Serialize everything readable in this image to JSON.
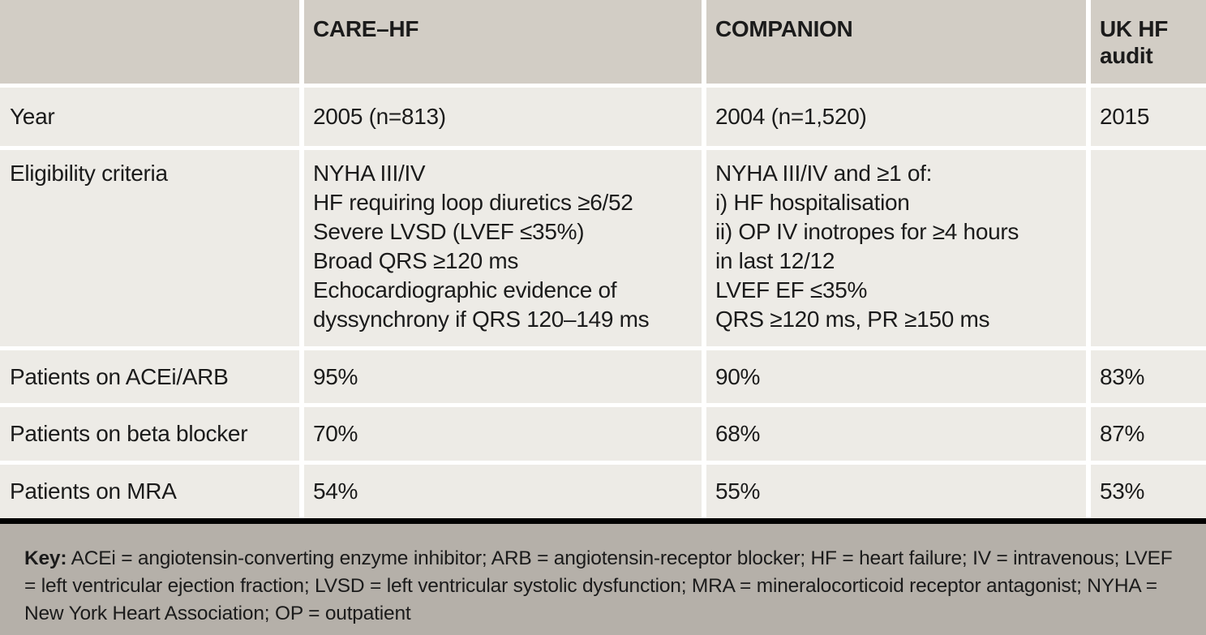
{
  "header": {
    "col0": "",
    "col1": "CARE–HF",
    "col2": "COMPANION",
    "col3": "UK HF audit"
  },
  "rows": {
    "year": {
      "label": "Year",
      "care_hf": "2005 (n=813)",
      "companion": "2004 (n=1,520)",
      "uk_hf_audit": "2015"
    },
    "eligibility": {
      "label": "Eligibility criteria",
      "care_hf": "NYHA III/IV\nHF requiring loop diuretics ≥6/52\nSevere LVSD (LVEF ≤35%)\nBroad QRS ≥120 ms\nEchocardiographic evidence of\ndyssynchrony if QRS 120–149 ms",
      "companion": "NYHA III/IV and ≥1 of:\ni) HF hospitalisation\nii) OP IV inotropes for ≥4 hours\nin last 12/12\nLVEF EF ≤35%\nQRS ≥120 ms, PR ≥150 ms",
      "uk_hf_audit": ""
    },
    "acei_arb": {
      "label": "Patients on ACEi/ARB",
      "care_hf": "95%",
      "companion": "90%",
      "uk_hf_audit": "83%"
    },
    "beta_blocker": {
      "label": "Patients on beta blocker",
      "care_hf": "70%",
      "companion": "68%",
      "uk_hf_audit": "87%"
    },
    "mra": {
      "label": "Patients on MRA",
      "care_hf": "54%",
      "companion": "55%",
      "uk_hf_audit": "53%"
    }
  },
  "footer": {
    "key_label": "Key:",
    "key_text": " ACEi = angiotensin-converting enzyme inhibitor; ARB = angiotensin-receptor blocker; HF = heart failure; IV = intravenous; LVEF = left ventricular ejection fraction; LVSD = left ventricular systolic dysfunction; MRA = mineralocorticoid receptor antagonist; NYHA = New York Heart Association; OP = outpatient"
  },
  "colors": {
    "header_bg": "#d2cdc5",
    "body_bg": "#edebe6",
    "footer_bg": "#b5b0a9",
    "rule": "#000000"
  }
}
